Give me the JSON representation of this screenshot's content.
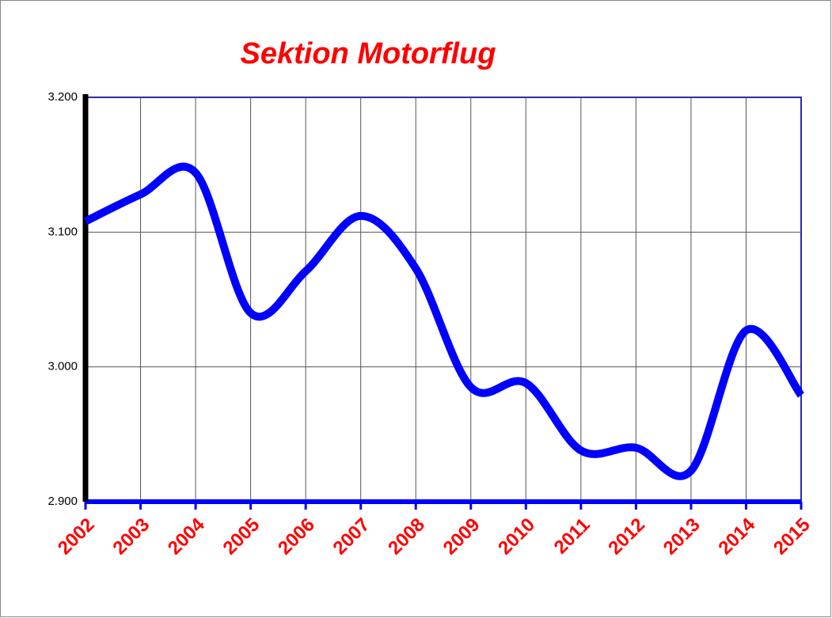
{
  "chart_data": {
    "type": "line",
    "title": "Sektion Motorflug",
    "categories": [
      "2002",
      "2003",
      "2004",
      "2005",
      "2006",
      "2007",
      "2008",
      "2009",
      "2010",
      "2011",
      "2012",
      "2013",
      "2014",
      "2015"
    ],
    "series": [
      {
        "color": "#0000ff",
        "values": [
          3.108,
          3.128,
          3.144,
          3.04,
          3.071,
          3.112,
          3.073,
          2.985,
          2.988,
          2.938,
          2.94,
          2.923,
          3.027,
          2.979
        ]
      }
    ],
    "ylim": [
      2.9,
      3.2
    ],
    "yticks": [
      {
        "value": 2.9,
        "label": "2.900"
      },
      {
        "value": 3.0,
        "label": "3.000"
      },
      {
        "value": 3.1,
        "label": "3.100"
      },
      {
        "value": 3.2,
        "label": "3.200"
      }
    ],
    "grid": true,
    "smooth": true
  }
}
